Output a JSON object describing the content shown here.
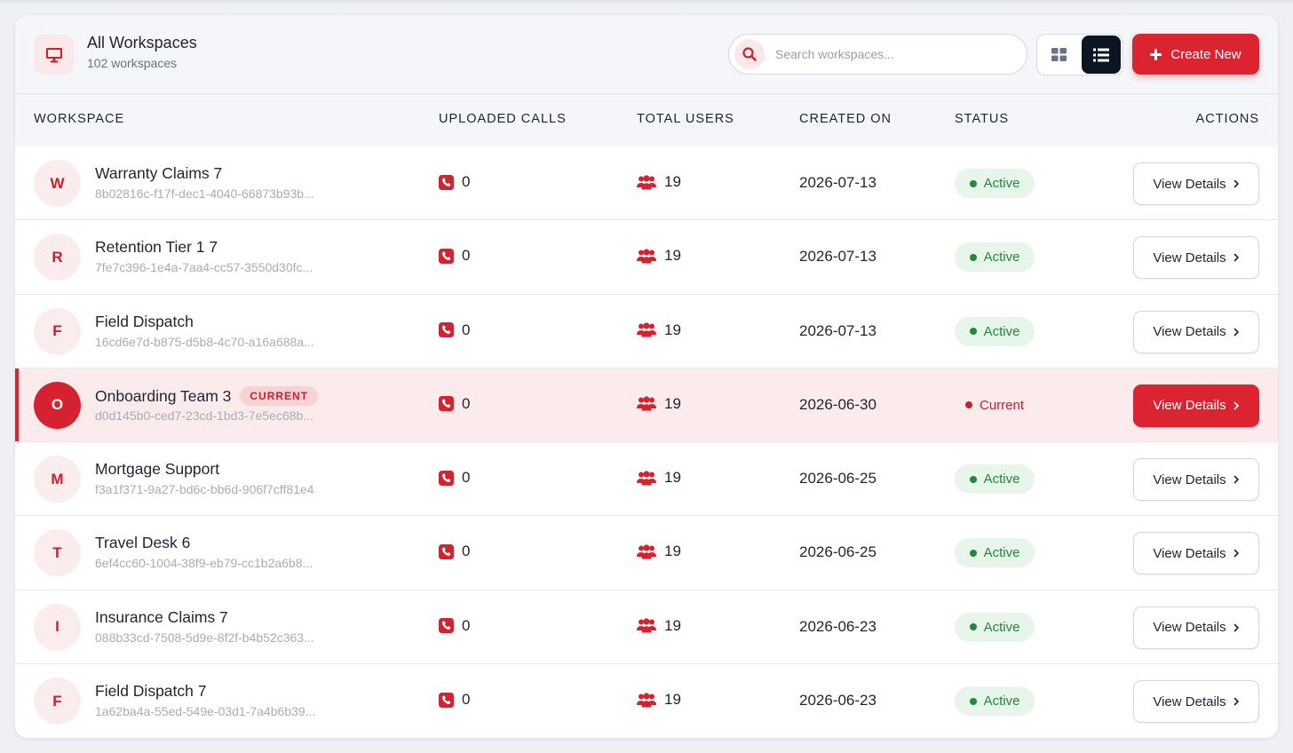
{
  "header": {
    "title": "All Workspaces",
    "subtitle": "102 workspaces",
    "search_placeholder": "Search workspaces...",
    "create_label": "Create New"
  },
  "columns": {
    "workspace": "WORKSPACE",
    "calls": "UPLOADED CALLS",
    "users": "TOTAL USERS",
    "created": "CREATED ON",
    "status": "STATUS",
    "actions": "ACTIONS"
  },
  "colors": {
    "accent": "#dc2431",
    "active": "#22893c",
    "dark": "#0d1422"
  },
  "rows": [
    {
      "initial": "W",
      "name": "Warranty Claims 7",
      "id": "8b02816c-f17f-dec1-4040-66873b93b...",
      "calls": "0",
      "users": "19",
      "created": "2026-07-13",
      "status": "Active",
      "action": "View Details"
    },
    {
      "initial": "R",
      "name": "Retention Tier 1 7",
      "id": "7fe7c396-1e4a-7aa4-cc57-3550d30fc...",
      "calls": "0",
      "users": "19",
      "created": "2026-07-13",
      "status": "Active",
      "action": "View Details"
    },
    {
      "initial": "F",
      "name": "Field Dispatch",
      "id": "16cd6e7d-b875-d5b8-4c70-a16a688a...",
      "calls": "0",
      "users": "19",
      "created": "2026-07-13",
      "status": "Active",
      "action": "View Details"
    },
    {
      "initial": "O",
      "name": "Onboarding Team 3",
      "badge": "CURRENT",
      "id": "d0d145b0-ced7-23cd-1bd3-7e5ec68b...",
      "calls": "0",
      "users": "19",
      "created": "2026-06-30",
      "status": "Current",
      "action": "View Details"
    },
    {
      "initial": "M",
      "name": "Mortgage Support",
      "id": "f3a1f371-9a27-bd6c-bb6d-906f7cff81e4",
      "calls": "0",
      "users": "19",
      "created": "2026-06-25",
      "status": "Active",
      "action": "View Details"
    },
    {
      "initial": "T",
      "name": "Travel Desk 6",
      "id": "6ef4cc60-1004-38f9-eb79-cc1b2a6b8...",
      "calls": "0",
      "users": "19",
      "created": "2026-06-25",
      "status": "Active",
      "action": "View Details"
    },
    {
      "initial": "I",
      "name": "Insurance Claims 7",
      "id": "088b33cd-7508-5d9e-8f2f-b4b52c363...",
      "calls": "0",
      "users": "19",
      "created": "2026-06-23",
      "status": "Active",
      "action": "View Details"
    },
    {
      "initial": "F",
      "name": "Field Dispatch 7",
      "id": "1a62ba4a-55ed-549e-03d1-7a4b6b39...",
      "calls": "0",
      "users": "19",
      "created": "2026-06-23",
      "status": "Active",
      "action": "View Details"
    }
  ]
}
